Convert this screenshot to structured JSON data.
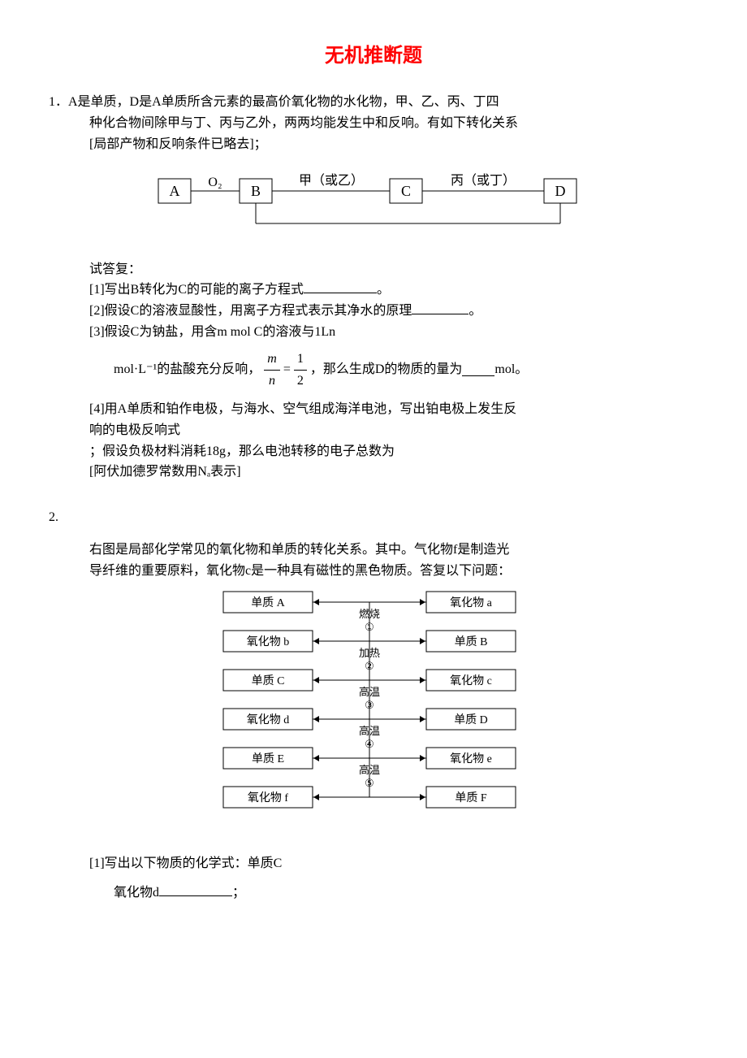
{
  "title": "无机推断题",
  "q1": {
    "stem_line1": "1．A是单质，D是A单质所含元素的最高价氧化物的水化物，甲、乙、丙、丁四",
    "stem_line2": "种化合物间除甲与丁、丙与乙外，两两均能发生中和反响。有如下转化关系",
    "stem_line3": "[局部产物和反响条件已略去]；",
    "diagram": {
      "boxA": "A",
      "boxB": "B",
      "boxC": "C",
      "boxD": "D",
      "label_O2": "O₂",
      "label_jia": "甲（或乙）",
      "label_bing": "丙（或丁）"
    },
    "answer_intro": "试答复：",
    "sub1": "[1]写出B转化为C的可能的离子方程式",
    "sub1_end": "。",
    "sub2": "[2]假设C的溶液显酸性，用离子方程式表示其净水的原理",
    "sub2_end": "。",
    "sub3": "[3]假设C为钠盐，用含m mol C的溶液与1Ln",
    "formula_pre": "mol·L⁻¹的盐酸充分反响，",
    "formula_mid": "，那么生成D的物质的量为",
    "formula_end": "mol。",
    "sub4_line1": "[4]用A单质和铂作电极，与海水、空气组成海洋电池，写出铂电极上发生反",
    "sub4_line2": "响的电极反响式",
    "sub4_line3": "；假设负极材料消耗18g，那么电池转移的电子总数为",
    "sub4_line4": "[阿伏加德罗常数用Nₐ表示]"
  },
  "q2": {
    "num": "2.",
    "stem_line1": "右图是局部化学常见的氧化物和单质的转化关系。其中。气化物f是制造光",
    "stem_line2": "导纤维的重要原料，氧化物c是一种具有磁性的黑色物质。答复以下问题：",
    "diagram": {
      "left_labels": [
        "单质 A",
        "氧化物 b",
        "单质 C",
        "氧化物 d",
        "单质 E",
        "氧化物 f"
      ],
      "right_labels": [
        "氧化物 a",
        "单质 B",
        "氧化物 c",
        "单质 D",
        "氧化物 e",
        "单质 F"
      ],
      "mid_labels": [
        {
          "text": "燃烧",
          "num": "①"
        },
        {
          "text": "加热",
          "num": "②"
        },
        {
          "text": "高温",
          "num": "③"
        },
        {
          "text": "高温",
          "num": "④"
        },
        {
          "text": "高温",
          "num": "⑤"
        }
      ]
    },
    "sub1": "[1]写出以下物质的化学式：单质C",
    "sub1_line2_pre": "氧化物d",
    "sub1_line2_end": "；"
  }
}
